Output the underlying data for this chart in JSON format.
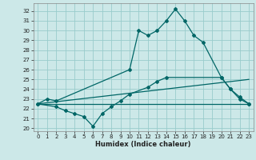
{
  "bg_color": "#cce8e8",
  "grid_color": "#99cccc",
  "line_color": "#006666",
  "xlabel": "Humidex (Indice chaleur)",
  "xlim": [
    -0.5,
    23.5
  ],
  "ylim": [
    19.7,
    32.8
  ],
  "yticks": [
    20,
    21,
    22,
    23,
    24,
    25,
    26,
    27,
    28,
    29,
    30,
    31,
    32
  ],
  "xticks": [
    0,
    1,
    2,
    3,
    4,
    5,
    6,
    7,
    8,
    9,
    10,
    11,
    12,
    13,
    14,
    15,
    16,
    17,
    18,
    19,
    20,
    21,
    22,
    23
  ],
  "line1_x": [
    0,
    1,
    2,
    10,
    11,
    12,
    13,
    14,
    15,
    16,
    17,
    18,
    20,
    21,
    22,
    23
  ],
  "line1_y": [
    22.5,
    23.0,
    22.8,
    26.0,
    30.0,
    29.5,
    30.0,
    31.0,
    32.2,
    31.0,
    29.5,
    28.8,
    25.2,
    24.0,
    23.0,
    22.5
  ],
  "line2_x": [
    0,
    2,
    3,
    4,
    5,
    6,
    7,
    8,
    9,
    10,
    12,
    13,
    14,
    20,
    21,
    22,
    23
  ],
  "line2_y": [
    22.5,
    22.2,
    21.8,
    21.5,
    21.2,
    20.2,
    21.5,
    22.2,
    22.8,
    23.5,
    24.2,
    24.8,
    25.2,
    25.2,
    24.0,
    23.2,
    22.5
  ],
  "line3_x": [
    0,
    23
  ],
  "line3_y": [
    22.5,
    22.5
  ],
  "line4_x": [
    0,
    23
  ],
  "line4_y": [
    22.5,
    25.0
  ]
}
